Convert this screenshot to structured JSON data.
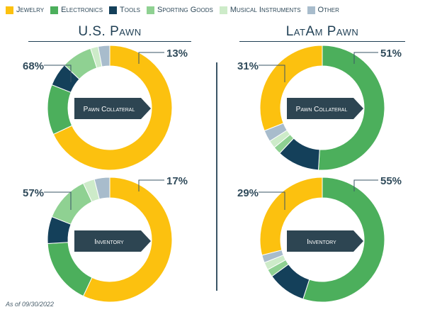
{
  "colors": {
    "Jewelry": "#fcc10f",
    "Electronics": "#4caf5c",
    "Tools": "#14405a",
    "Sporting Goods": "#8fd192",
    "Musical Instruments": "#cdebc9",
    "Other": "#a8bccc",
    "label_box": "#2d4552",
    "text_dark": "#2f4a5a"
  },
  "legend": [
    {
      "label": "Jewelry",
      "color": "#fcc10f"
    },
    {
      "label": "Electronics",
      "color": "#4caf5c"
    },
    {
      "label": "Tools",
      "color": "#14405a"
    },
    {
      "label": "Sporting Goods",
      "color": "#8fd192"
    },
    {
      "label": "Musical Instruments",
      "color": "#cdebc9"
    },
    {
      "label": "Other",
      "color": "#a8bccc"
    }
  ],
  "titles": {
    "us": "U.S. Pawn",
    "latam": "LatAm Pawn"
  },
  "footnote": "As of 09/30/2022",
  "chart_data": [
    {
      "type": "pie",
      "donut": true,
      "region": "U.S. Pawn",
      "center_label": "Pawn Collateral",
      "categories": [
        "Jewelry",
        "Electronics",
        "Tools",
        "Sporting Goods",
        "Musical Instruments",
        "Other"
      ],
      "values": [
        68,
        13,
        6,
        8,
        2,
        3
      ],
      "labeled_values": {
        "Jewelry": "68%",
        "Electronics": "13%"
      }
    },
    {
      "type": "pie",
      "donut": true,
      "region": "U.S. Pawn",
      "center_label": "Inventory",
      "categories": [
        "Jewelry",
        "Electronics",
        "Tools",
        "Sporting Goods",
        "Musical Instruments",
        "Other"
      ],
      "values": [
        57,
        17,
        7,
        12,
        3,
        4
      ],
      "labeled_values": {
        "Jewelry": "57%",
        "Electronics": "17%"
      }
    },
    {
      "type": "pie",
      "donut": true,
      "region": "LatAm Pawn",
      "center_label": "Pawn Collateral",
      "categories": [
        "Electronics",
        "Tools",
        "Sporting Goods",
        "Musical Instruments",
        "Other",
        "Jewelry"
      ],
      "values": [
        51,
        11,
        2,
        2,
        3,
        31
      ],
      "labeled_values": {
        "Jewelry": "31%",
        "Electronics": "51%"
      }
    },
    {
      "type": "pie",
      "donut": true,
      "region": "LatAm Pawn",
      "center_label": "Inventory",
      "categories": [
        "Electronics",
        "Tools",
        "Sporting Goods",
        "Musical Instruments",
        "Other",
        "Jewelry"
      ],
      "values": [
        55,
        10,
        2,
        2,
        2,
        29
      ],
      "labeled_values": {
        "Jewelry": "29%",
        "Electronics": "55%"
      }
    }
  ]
}
